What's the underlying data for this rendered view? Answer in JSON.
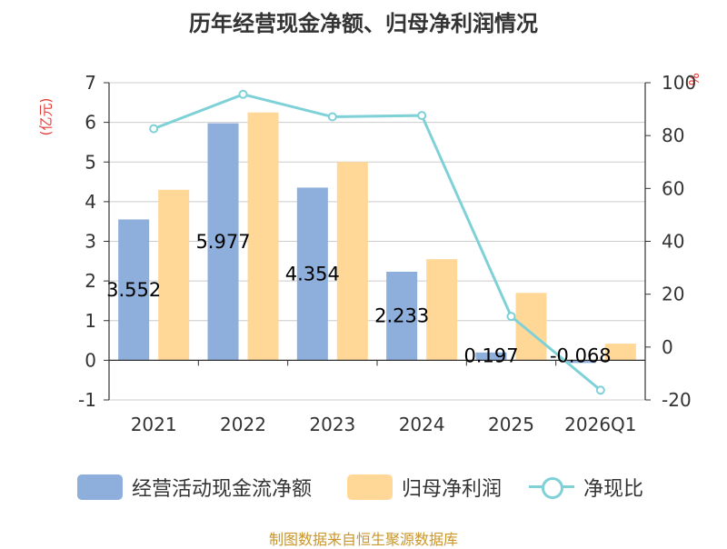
{
  "chart_data": {
    "type": "bar",
    "title": "历年经营现金净额、归母净利润情况",
    "categories": [
      "2021",
      "2022",
      "2023",
      "2024",
      "2025",
      "2026Q1"
    ],
    "y_left": {
      "label": "(亿元)",
      "min": -1,
      "max": 7,
      "step": 1
    },
    "y_right": {
      "label": "%",
      "min": -20,
      "max": 100,
      "step": 20
    },
    "series": [
      {
        "name": "经营活动现金流净额",
        "kind": "bar",
        "axis": "left",
        "color": "#8eaedb",
        "values": [
          3.552,
          5.977,
          4.354,
          2.233,
          0.197,
          -0.068
        ],
        "labels": [
          "3.552",
          "5.977",
          "4.354",
          "2.233",
          "0.197",
          "-0.068"
        ]
      },
      {
        "name": "归母净利润",
        "kind": "bar",
        "axis": "left",
        "color": "#ffd898",
        "values": [
          4.3,
          6.25,
          5.0,
          2.55,
          1.7,
          0.42
        ]
      },
      {
        "name": "净现比",
        "kind": "line",
        "axis": "right",
        "color": "#7fd1d8",
        "values": [
          82.6,
          95.6,
          87.1,
          87.6,
          11.6,
          -16.3
        ]
      }
    ],
    "grid": true,
    "legend": "bottom"
  },
  "source": "制图数据来自恒生聚源数据库",
  "colors": {
    "title": "#333333",
    "unit": "#e53935",
    "source": "#c8962a",
    "axis": "#333333",
    "grid": "#cccccc"
  }
}
